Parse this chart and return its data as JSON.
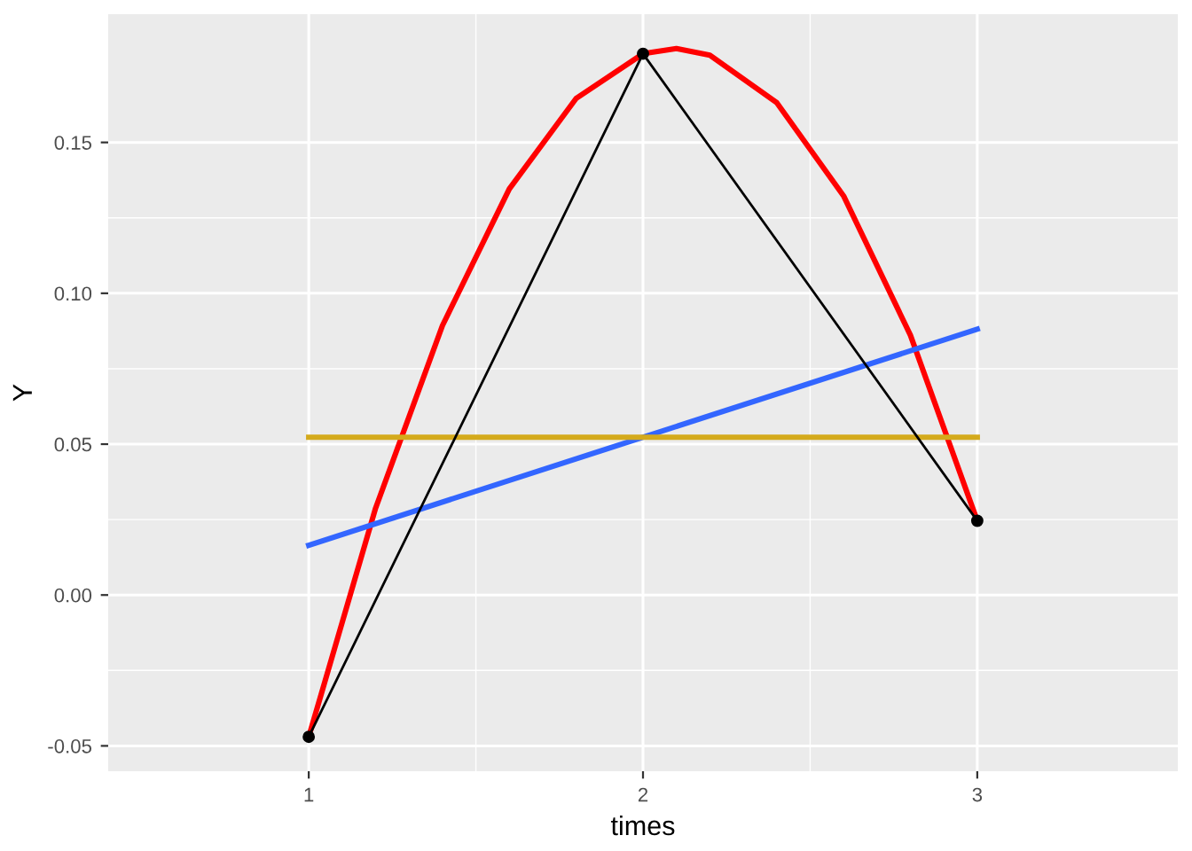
{
  "chart_data": {
    "type": "line",
    "xlabel": "times",
    "ylabel": "Y",
    "xlim": [
      0.4,
      3.6
    ],
    "ylim": [
      -0.0584,
      0.1925
    ],
    "xticks": [
      1,
      2,
      3
    ],
    "yticks": [
      {
        "value": -0.05,
        "label": "-0.05"
      },
      {
        "value": 0,
        "label": "0.00"
      },
      {
        "value": 0.05,
        "label": "0.05"
      },
      {
        "value": 0.1,
        "label": "0.10"
      },
      {
        "value": 0.15,
        "label": "0.15"
      }
    ],
    "grid": true,
    "legend": false,
    "series": [
      {
        "color": "#ff0000",
        "x": [
          1,
          1.2,
          1.4,
          1.6,
          1.8,
          2.0,
          2.1,
          2.2,
          2.4,
          2.6,
          2.8,
          3.0
        ],
        "values": [
          -0.047,
          0.0288,
          0.0893,
          0.1346,
          0.1646,
          0.1794,
          0.1811,
          0.1789,
          0.1632,
          0.1323,
          0.0861,
          0.0246
        ]
      },
      {
        "color": "#3366ff",
        "x": [
          1,
          3
        ],
        "values": [
          0.0165,
          0.0881
        ]
      },
      {
        "color": "#d4aa1c",
        "x": [
          1,
          3
        ],
        "values": [
          0.0523,
          0.0523
        ]
      },
      {
        "color": "#000000",
        "x": [
          1,
          2,
          3
        ],
        "values": [
          -0.047,
          0.1794,
          0.0246
        ],
        "marker": "circle"
      }
    ]
  }
}
